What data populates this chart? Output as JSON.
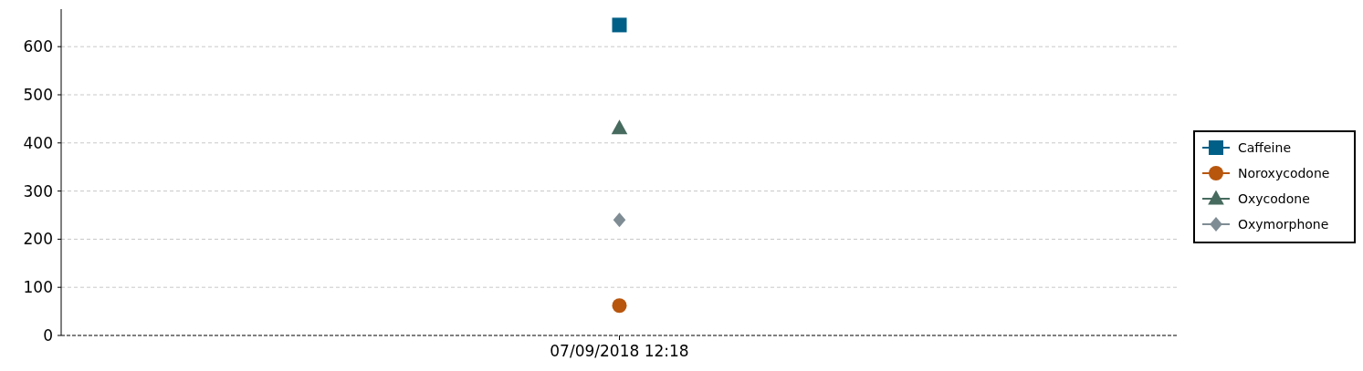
{
  "chart_data": {
    "type": "line",
    "categories": [
      "07/09/2018 12:18"
    ],
    "ylim": [
      0,
      678
    ],
    "yticks": [
      0,
      100,
      200,
      300,
      400,
      500,
      600
    ],
    "grid": "y",
    "legend": "right",
    "series": [
      {
        "name": "Caffeine",
        "color": "#005f87",
        "values": [
          645
        ],
        "marker": "square"
      },
      {
        "name": "Noroxycodone",
        "color": "#b8560e",
        "values": [
          62
        ],
        "marker": "circle"
      },
      {
        "name": "Oxycodone",
        "color": "#476b5e",
        "values": [
          430
        ],
        "marker": "triangle"
      },
      {
        "name": "Oxymorphone",
        "color": "#7f8c94",
        "values": [
          240
        ],
        "marker": "diamond"
      }
    ]
  }
}
